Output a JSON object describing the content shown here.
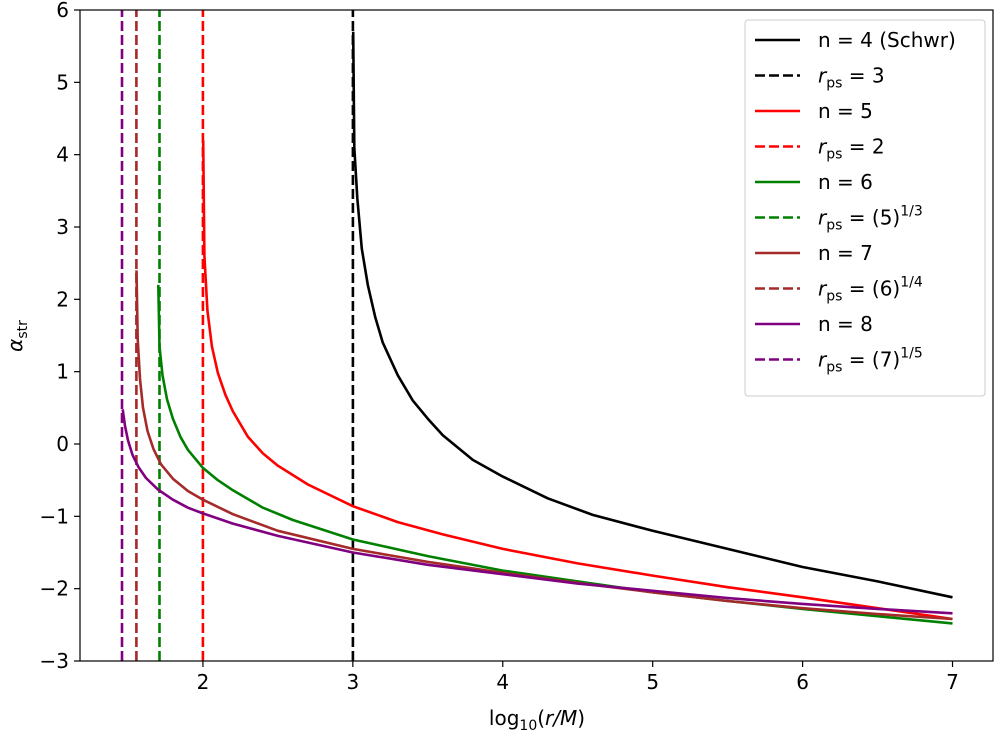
{
  "chart_data": {
    "type": "line",
    "title": "",
    "xlabel": "log10(r/M)",
    "ylabel": "α_str",
    "xlim": [
      1.18,
      7.27
    ],
    "ylim": [
      -3,
      6
    ],
    "xticks": [
      2,
      3,
      4,
      5,
      6,
      7
    ],
    "xtick_labels": [
      "2",
      "3",
      "4",
      "5",
      "6",
      "7"
    ],
    "yticks": [
      -3,
      -2,
      -1,
      0,
      1,
      2,
      3,
      4,
      5,
      6
    ],
    "ytick_labels": [
      "−3",
      "−2",
      "−1",
      "0",
      "1",
      "2",
      "3",
      "4",
      "5",
      "6"
    ],
    "grid": false,
    "legend_position": "top-right",
    "series": [
      {
        "name": "n = 4 (Schwr)",
        "color": "#000000",
        "style": "solid",
        "x": [
          3.002,
          3.01,
          3.03,
          3.06,
          3.1,
          3.15,
          3.2,
          3.3,
          3.4,
          3.5,
          3.6,
          3.8,
          4.0,
          4.3,
          4.6,
          5.0,
          5.5,
          6.0,
          6.5,
          7.0
        ],
        "y": [
          5.7,
          4.1,
          3.4,
          2.7,
          2.2,
          1.75,
          1.4,
          0.95,
          0.6,
          0.35,
          0.12,
          -0.22,
          -0.45,
          -0.75,
          -0.98,
          -1.2,
          -1.45,
          -1.7,
          -1.9,
          -2.12
        ]
      },
      {
        "name": "r_ps = 3",
        "color": "#000000",
        "style": "dashed",
        "x": [
          3.0,
          3.0
        ],
        "y": [
          -3,
          6
        ]
      },
      {
        "name": "n = 5",
        "color": "#ff0000",
        "style": "solid",
        "x": [
          2.002,
          2.01,
          2.03,
          2.06,
          2.1,
          2.15,
          2.2,
          2.3,
          2.4,
          2.5,
          2.7,
          3.0,
          3.3,
          3.6,
          4.0,
          4.5,
          5.0,
          5.5,
          6.0,
          6.5,
          7.0
        ],
        "y": [
          4.2,
          2.6,
          1.85,
          1.35,
          0.98,
          0.68,
          0.45,
          0.1,
          -0.13,
          -0.3,
          -0.56,
          -0.86,
          -1.08,
          -1.25,
          -1.45,
          -1.65,
          -1.82,
          -1.98,
          -2.12,
          -2.27,
          -2.42
        ]
      },
      {
        "name": "r_ps = 2",
        "color": "#ff0000",
        "style": "dashed",
        "x": [
          2.0,
          2.0
        ],
        "y": [
          -3,
          6
        ]
      },
      {
        "name": "n = 6",
        "color": "#008000",
        "style": "solid",
        "x": [
          1.702,
          1.71,
          1.73,
          1.76,
          1.8,
          1.85,
          1.9,
          2.0,
          2.1,
          2.2,
          2.4,
          2.6,
          3.0,
          3.5,
          4.0,
          4.5,
          5.0,
          5.5,
          6.0,
          6.5,
          7.0
        ],
        "y": [
          2.2,
          1.35,
          0.95,
          0.62,
          0.35,
          0.1,
          -0.08,
          -0.33,
          -0.5,
          -0.64,
          -0.88,
          -1.05,
          -1.32,
          -1.55,
          -1.75,
          -1.9,
          -2.05,
          -2.17,
          -2.28,
          -2.38,
          -2.48
        ]
      },
      {
        "name": "r_ps = (5)^1/3",
        "color": "#008000",
        "style": "dashed",
        "x": [
          1.71,
          1.71
        ],
        "y": [
          -3,
          6
        ]
      },
      {
        "name": "n = 7",
        "color": "#a52a2a",
        "style": "solid",
        "x": [
          1.557,
          1.565,
          1.58,
          1.6,
          1.63,
          1.67,
          1.72,
          1.8,
          1.9,
          2.0,
          2.2,
          2.5,
          3.0,
          3.5,
          4.0,
          4.5,
          5.0,
          5.5,
          6.0,
          6.5,
          7.0
        ],
        "y": [
          2.4,
          1.45,
          0.9,
          0.5,
          0.18,
          -0.07,
          -0.28,
          -0.48,
          -0.65,
          -0.77,
          -0.97,
          -1.2,
          -1.45,
          -1.63,
          -1.78,
          -1.92,
          -2.05,
          -2.17,
          -2.27,
          -2.35,
          -2.42
        ]
      },
      {
        "name": "r_ps = (6)^1/4",
        "color": "#a52a2a",
        "style": "dashed",
        "x": [
          1.556,
          1.556
        ],
        "y": [
          -3,
          6
        ]
      },
      {
        "name": "n = 8",
        "color": "#800080",
        "style": "solid",
        "x": [
          1.465,
          1.48,
          1.5,
          1.53,
          1.57,
          1.62,
          1.7,
          1.8,
          1.9,
          2.0,
          2.2,
          2.5,
          3.0,
          3.5,
          4.0,
          4.5,
          5.0,
          5.5,
          6.0,
          6.5,
          7.0
        ],
        "y": [
          0.48,
          0.25,
          0.05,
          -0.15,
          -0.32,
          -0.47,
          -0.63,
          -0.77,
          -0.88,
          -0.96,
          -1.1,
          -1.27,
          -1.5,
          -1.67,
          -1.8,
          -1.93,
          -2.03,
          -2.13,
          -2.21,
          -2.28,
          -2.34
        ]
      },
      {
        "name": "r_ps = (7)^1/5",
        "color": "#800080",
        "style": "dashed",
        "x": [
          1.46,
          1.46
        ],
        "y": [
          -3,
          6
        ]
      }
    ],
    "legend": [
      {
        "label": "n = 4 (Schwr)",
        "color": "#000000",
        "style": "solid",
        "kind": "plain"
      },
      {
        "label_r": "r",
        "label_sub": "ps",
        "label_rest": " = 3",
        "label_sup": "",
        "color": "#000000",
        "style": "dashed",
        "kind": "rps"
      },
      {
        "label": "n = 5",
        "color": "#ff0000",
        "style": "solid",
        "kind": "plain"
      },
      {
        "label_r": "r",
        "label_sub": "ps",
        "label_rest": " = 2",
        "label_sup": "",
        "color": "#ff0000",
        "style": "dashed",
        "kind": "rps"
      },
      {
        "label": "n = 6",
        "color": "#008000",
        "style": "solid",
        "kind": "plain"
      },
      {
        "label_r": "r",
        "label_sub": "ps",
        "label_rest": " = (5)",
        "label_sup": "1/3",
        "color": "#008000",
        "style": "dashed",
        "kind": "rps"
      },
      {
        "label": "n = 7",
        "color": "#a52a2a",
        "style": "solid",
        "kind": "plain"
      },
      {
        "label_r": "r",
        "label_sub": "ps",
        "label_rest": " = (6)",
        "label_sup": "1/4",
        "color": "#a52a2a",
        "style": "dashed",
        "kind": "rps"
      },
      {
        "label": "n = 8",
        "color": "#800080",
        "style": "solid",
        "kind": "plain"
      },
      {
        "label_r": "r",
        "label_sub": "ps",
        "label_rest": " = (7)",
        "label_sup": "1/5",
        "color": "#800080",
        "style": "dashed",
        "kind": "rps"
      }
    ]
  },
  "axes": {
    "xlabel_prefix": "log",
    "xlabel_sub": "10",
    "xlabel_paren_open": "(",
    "xlabel_var": "r/M",
    "xlabel_paren_close": ")",
    "ylabel_main": "α",
    "ylabel_sub": "str"
  }
}
